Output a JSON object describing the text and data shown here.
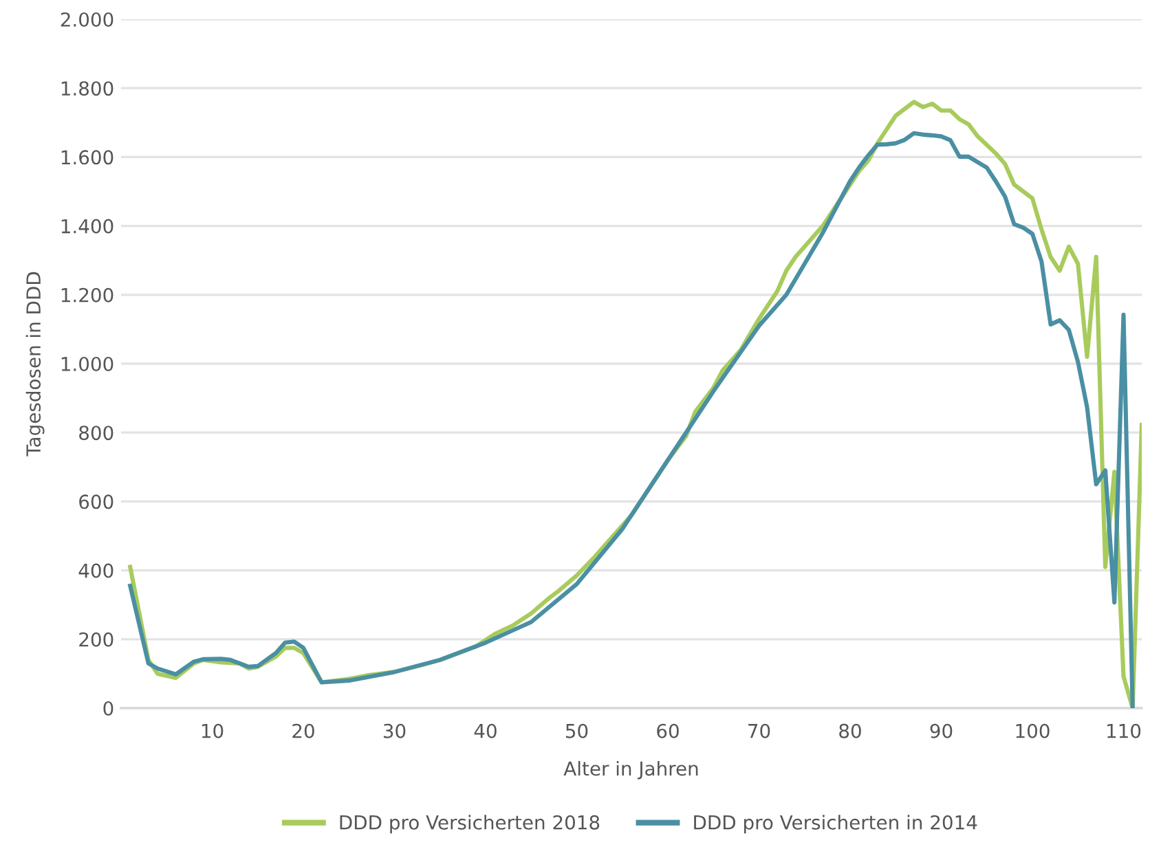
{
  "chart_data": {
    "type": "line",
    "xlabel": "Alter in Jahren",
    "ylabel": "Tagesdosen in DDD",
    "xlim": [
      0,
      112
    ],
    "xticks": [
      10,
      20,
      30,
      40,
      50,
      60,
      70,
      80,
      90,
      100,
      110
    ],
    "ylim": [
      0,
      2000
    ],
    "yticks": [
      0,
      200,
      400,
      600,
      800,
      {
        "value": 1000,
        "label": "1.000"
      },
      {
        "value": 1200,
        "label": "1.200"
      },
      {
        "value": 1400,
        "label": "1.400"
      },
      {
        "value": 1600,
        "label": "1.600"
      },
      {
        "value": 1800,
        "label": "1.800"
      },
      {
        "value": 2000,
        "label": "2.000"
      }
    ],
    "grid": "y",
    "legend": "bottom",
    "marker": "none",
    "line_style": "solid",
    "series": [
      {
        "name": "DDD pro Versicherten 2018",
        "color": "#a8cb5c",
        "x": [
          1,
          3,
          4,
          6,
          8,
          9,
          11,
          13,
          14,
          15,
          17,
          18,
          19,
          20,
          22,
          25,
          27,
          30,
          33,
          35,
          37,
          39,
          41,
          43,
          45,
          47,
          48,
          50,
          52,
          54,
          56,
          58,
          60,
          62,
          63,
          65,
          66,
          68,
          70,
          72,
          73,
          74,
          75,
          77,
          79,
          81,
          82,
          83,
          84,
          85,
          86,
          87,
          88,
          89,
          90,
          91,
          92,
          93,
          94,
          96,
          97,
          98,
          99,
          100,
          101,
          102,
          103,
          104,
          105,
          106,
          107,
          108,
          109,
          110,
          111,
          112
        ],
        "values": [
          410,
          140,
          100,
          88,
          130,
          140,
          133,
          130,
          115,
          120,
          150,
          175,
          175,
          160,
          75,
          85,
          95,
          105,
          125,
          140,
          160,
          180,
          215,
          240,
          275,
          320,
          340,
          385,
          440,
          500,
          560,
          640,
          720,
          790,
          860,
          930,
          980,
          1040,
          1130,
          1210,
          1270,
          1310,
          1340,
          1400,
          1480,
          1560,
          1590,
          1640,
          1680,
          1720,
          1740,
          1760,
          1745,
          1755,
          1735,
          1735,
          1710,
          1695,
          1660,
          1610,
          1580,
          1520,
          1500,
          1480,
          1390,
          1310,
          1270,
          1340,
          1290,
          1020,
          1310,
          410,
          686,
          92,
          0,
          822
        ]
      },
      {
        "name": "DDD pro Versicherten in 2014",
        "color": "#4a8fa3",
        "x": [
          1,
          3,
          4,
          6,
          8,
          9,
          11,
          12,
          14,
          15,
          17,
          18,
          19,
          20,
          22,
          25,
          30,
          35,
          40,
          45,
          50,
          55,
          60,
          65,
          70,
          73,
          75,
          77,
          79,
          80,
          81,
          82,
          83,
          84,
          85,
          86,
          87,
          88,
          89,
          90,
          91,
          92,
          93,
          94,
          95,
          96,
          97,
          98,
          99,
          100,
          101,
          102,
          103,
          104,
          105,
          106,
          107,
          108,
          109,
          110,
          111
        ],
        "values": [
          355,
          130,
          115,
          98,
          135,
          142,
          143,
          140,
          120,
          122,
          160,
          190,
          193,
          175,
          75,
          80,
          105,
          140,
          190,
          250,
          360,
          520,
          720,
          920,
          1110,
          1200,
          1290,
          1380,
          1480,
          1530,
          1570,
          1605,
          1636,
          1637,
          1640,
          1650,
          1669,
          1665,
          1663,
          1660,
          1649,
          1601,
          1601,
          1585,
          1569,
          1529,
          1485,
          1405,
          1395,
          1377,
          1297,
          1114,
          1126,
          1098,
          1005,
          874,
          650,
          690,
          307,
          1142,
          0
        ]
      }
    ]
  }
}
